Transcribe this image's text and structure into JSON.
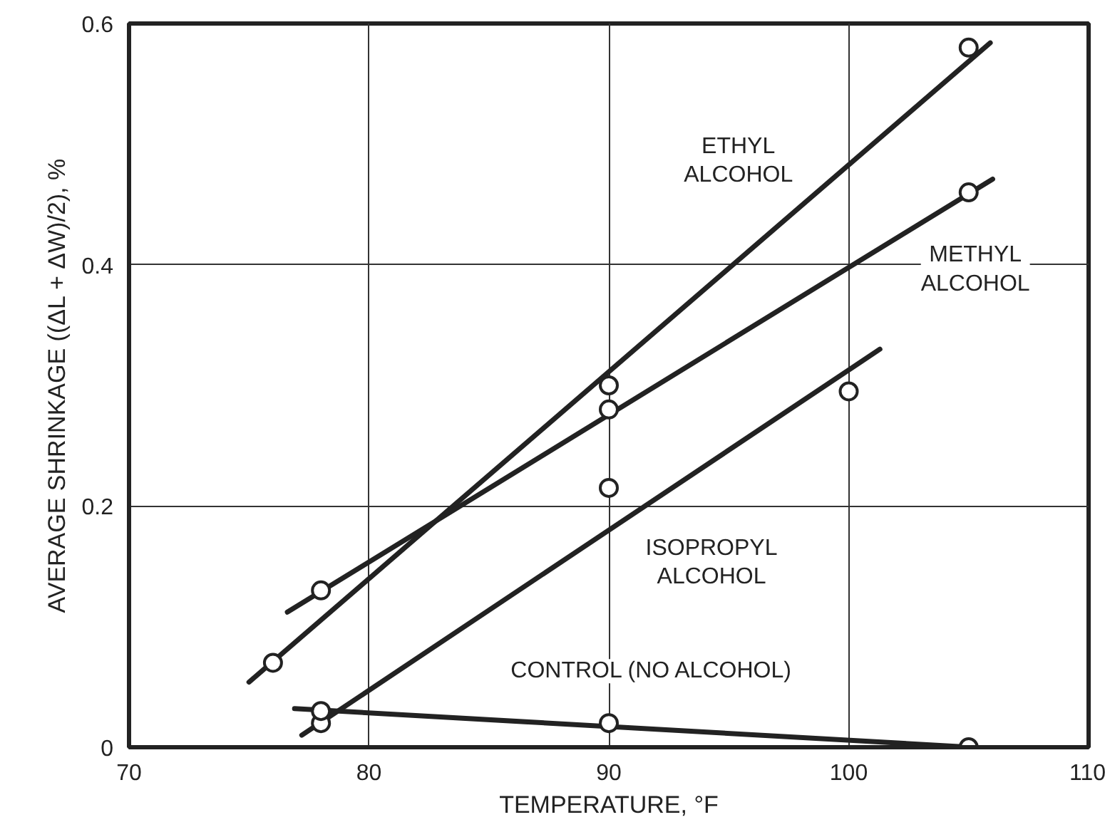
{
  "chart_data": {
    "type": "scatter",
    "xlabel": "TEMPERATURE, °F",
    "ylabel": "AVERAGE SHRINKAGE ((ΔL + ΔW)/2), %",
    "xlim": [
      70,
      110
    ],
    "xticks": [
      70,
      80,
      90,
      100,
      110
    ],
    "ylim": [
      0,
      0.6
    ],
    "yticks": [
      0,
      0.2,
      0.4,
      0.6
    ],
    "grid": true,
    "series": [
      {
        "marker": "circle",
        "color": "#222222",
        "x": [
          76,
          90,
          105
        ],
        "values": [
          0.07,
          0.3,
          0.58
        ]
      },
      {
        "marker": "circle",
        "color": "#222222",
        "x": [
          78,
          90,
          105
        ],
        "values": [
          0.13,
          0.28,
          0.46
        ]
      },
      {
        "marker": "circle",
        "color": "#222222",
        "x": [
          78,
          90,
          100
        ],
        "values": [
          0.02,
          0.215,
          0.295
        ]
      },
      {
        "marker": "circle",
        "color": "#222222",
        "x": [
          78,
          90,
          105
        ],
        "values": [
          0.03,
          0.02,
          0.0
        ]
      },
      {
        "type": "line",
        "marker": "none",
        "color": "#222222",
        "line_style": "solid",
        "x": [
          75.0,
          105.9
        ],
        "values": [
          0.054,
          0.584
        ]
      },
      {
        "type": "line",
        "marker": "none",
        "color": "#222222",
        "line_style": "solid",
        "x": [
          76.6,
          106.0
        ],
        "values": [
          0.112,
          0.471
        ]
      },
      {
        "type": "line",
        "marker": "none",
        "color": "#222222",
        "line_style": "solid",
        "x": [
          77.2,
          101.3
        ],
        "values": [
          0.01,
          0.33
        ]
      },
      {
        "type": "line",
        "marker": "none",
        "color": "#222222",
        "line_style": "solid",
        "x": [
          76.9,
          105.1
        ],
        "values": [
          0.032,
          0.0
        ]
      }
    ],
    "annotations": [
      "ETHYL\nALCOHOL",
      "METHYL\nALCOHOL",
      "ISOPROPYL\nALCOHOL",
      "CONTROL (NO ALCOHOL)"
    ]
  }
}
